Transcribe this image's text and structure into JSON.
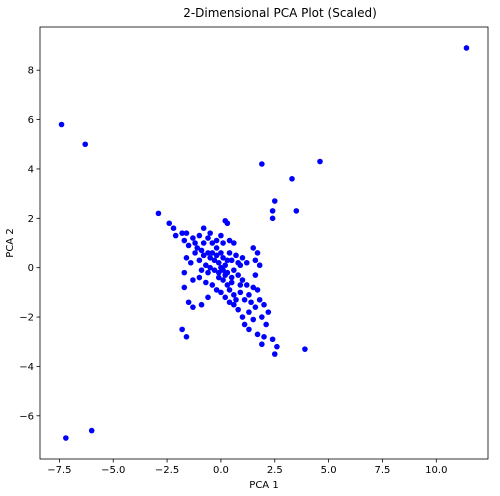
{
  "chart_data": {
    "type": "scatter",
    "title": "2-Dimensional PCA Plot (Scaled)",
    "xlabel": "PCA 1",
    "ylabel": "PCA 2",
    "xlim": [
      -8.4,
      12.4
    ],
    "ylim": [
      -7.75,
      9.75
    ],
    "xticks": [
      -7.5,
      -5.0,
      -2.5,
      0.0,
      2.5,
      5.0,
      7.5,
      10.0
    ],
    "xtick_labels": [
      "−7.5",
      "−5.0",
      "−2.5",
      "0.0",
      "2.5",
      "5.0",
      "7.5",
      "10.0"
    ],
    "yticks": [
      -6,
      -4,
      -2,
      0,
      2,
      4,
      6,
      8
    ],
    "ytick_labels": [
      "−6",
      "−4",
      "−2",
      "0",
      "2",
      "4",
      "6",
      "8"
    ],
    "grid": false,
    "marker_color": "#0000ff",
    "points": [
      [
        11.4,
        8.9
      ],
      [
        -7.4,
        5.8
      ],
      [
        -6.3,
        5.0
      ],
      [
        -7.2,
        -6.9
      ],
      [
        -6.0,
        -6.6
      ],
      [
        1.9,
        4.2
      ],
      [
        4.6,
        4.3
      ],
      [
        3.3,
        3.6
      ],
      [
        2.5,
        2.7
      ],
      [
        3.5,
        2.3
      ],
      [
        2.4,
        2.3
      ],
      [
        2.4,
        2.0
      ],
      [
        -2.9,
        2.2
      ],
      [
        0.2,
        1.9
      ],
      [
        0.3,
        1.8
      ],
      [
        -2.4,
        1.8
      ],
      [
        -2.2,
        1.6
      ],
      [
        -2.1,
        1.3
      ],
      [
        -1.8,
        1.4
      ],
      [
        -1.6,
        1.4
      ],
      [
        -1.7,
        1.1
      ],
      [
        -1.5,
        0.9
      ],
      [
        -1.3,
        1.2
      ],
      [
        -1.2,
        1.0
      ],
      [
        -1.0,
        1.3
      ],
      [
        -0.8,
        1.6
      ],
      [
        -0.8,
        1.0
      ],
      [
        -0.6,
        1.2
      ],
      [
        -0.4,
        1.0
      ],
      [
        -0.2,
        1.1
      ],
      [
        0.1,
        1.0
      ],
      [
        0.4,
        1.1
      ],
      [
        0.6,
        1.0
      ],
      [
        -1.1,
        0.8
      ],
      [
        -0.9,
        0.7
      ],
      [
        -0.8,
        0.5
      ],
      [
        -0.6,
        0.6
      ],
      [
        -0.5,
        0.4
      ],
      [
        -0.4,
        0.6
      ],
      [
        -0.3,
        0.3
      ],
      [
        -0.2,
        0.5
      ],
      [
        -0.1,
        0.2
      ],
      [
        0.0,
        0.6
      ],
      [
        0.1,
        0.4
      ],
      [
        0.2,
        0.1
      ],
      [
        0.3,
        0.3
      ],
      [
        0.4,
        0.6
      ],
      [
        -1.6,
        0.4
      ],
      [
        -1.4,
        0.2
      ],
      [
        -1.0,
        0.3
      ],
      [
        -0.7,
        0.1
      ],
      [
        -0.5,
        0.0
      ],
      [
        -0.3,
        -0.1
      ],
      [
        -0.1,
        -0.2
      ],
      [
        0.0,
        0.0
      ],
      [
        0.1,
        -0.1
      ],
      [
        0.2,
        -0.3
      ],
      [
        0.3,
        -0.2
      ],
      [
        0.5,
        -0.4
      ],
      [
        0.6,
        -0.1
      ],
      [
        0.8,
        -0.3
      ],
      [
        0.9,
        0.1
      ],
      [
        1.0,
        -0.5
      ],
      [
        1.2,
        0.2
      ],
      [
        1.5,
        0.8
      ],
      [
        1.7,
        0.6
      ],
      [
        1.8,
        0.1
      ],
      [
        1.6,
        -0.3
      ],
      [
        -1.7,
        -0.2
      ],
      [
        -1.3,
        -0.5
      ],
      [
        -1.0,
        -0.4
      ],
      [
        -0.7,
        -0.6
      ],
      [
        -0.4,
        -0.7
      ],
      [
        -0.2,
        -0.9
      ],
      [
        0.0,
        -1.0
      ],
      [
        0.2,
        -1.2
      ],
      [
        0.4,
        -0.9
      ],
      [
        0.6,
        -1.1
      ],
      [
        0.7,
        -1.3
      ],
      [
        0.9,
        -1.0
      ],
      [
        1.1,
        -1.3
      ],
      [
        1.3,
        -1.1
      ],
      [
        1.4,
        -1.4
      ],
      [
        1.6,
        -1.6
      ],
      [
        1.8,
        -1.3
      ],
      [
        2.0,
        -1.5
      ],
      [
        2.2,
        -1.8
      ],
      [
        1.9,
        -2.0
      ],
      [
        2.1,
        -2.3
      ],
      [
        1.5,
        -2.1
      ],
      [
        1.3,
        -1.8
      ],
      [
        1.0,
        -2.0
      ],
      [
        0.8,
        -1.7
      ],
      [
        1.1,
        -2.3
      ],
      [
        1.3,
        -2.5
      ],
      [
        1.7,
        -2.7
      ],
      [
        2.0,
        -2.8
      ],
      [
        2.4,
        -2.9
      ],
      [
        2.6,
        -3.2
      ],
      [
        1.9,
        -3.1
      ],
      [
        2.5,
        -3.5
      ],
      [
        3.9,
        -3.3
      ],
      [
        -1.5,
        -1.4
      ],
      [
        -1.3,
        -1.6
      ],
      [
        -0.9,
        -1.5
      ],
      [
        -0.6,
        -1.2
      ],
      [
        -1.8,
        -2.5
      ],
      [
        -1.6,
        -2.8
      ],
      [
        -1.7,
        -0.8
      ],
      [
        0.1,
        -0.5
      ],
      [
        0.3,
        -0.7
      ],
      [
        0.5,
        -0.6
      ],
      [
        -0.2,
        0.8
      ],
      [
        0.5,
        0.3
      ],
      [
        0.7,
        0.5
      ],
      [
        0.8,
        0.2
      ],
      [
        1.0,
        0.4
      ],
      [
        -0.6,
        -0.2
      ],
      [
        -0.9,
        -0.1
      ],
      [
        0.4,
        -1.4
      ],
      [
        1.5,
        -0.8
      ],
      [
        1.2,
        -0.7
      ],
      [
        0.9,
        -0.7
      ],
      [
        1.7,
        -0.9
      ],
      [
        0.6,
        -1.5
      ],
      [
        1.6,
        0.3
      ],
      [
        -1.2,
        0.6
      ],
      [
        0.0,
        1.3
      ],
      [
        -0.5,
        1.4
      ],
      [
        -0.1,
        -0.4
      ]
    ]
  }
}
